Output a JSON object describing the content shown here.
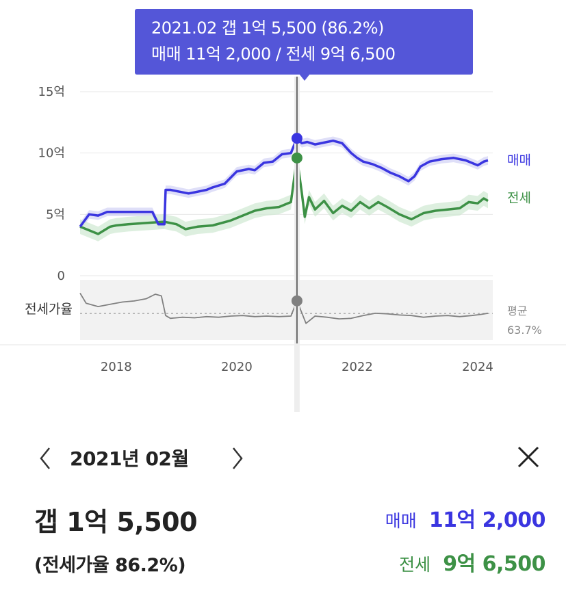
{
  "tooltip": {
    "line1": "2021.02  갭 1억 5,500 (86.2%)",
    "line2": "매매 11억 2,000 / 전세 9억 6,500"
  },
  "colors": {
    "sale": "#3a35e0",
    "jeonse": "#3d9146",
    "ratio": "#808080",
    "accent": "#5456d8",
    "sale_band": "#c9caf3",
    "jeonse_band": "#cfe8d2"
  },
  "chart_data": {
    "type": "line",
    "y_axis": {
      "ticks": [
        0,
        5,
        10,
        15
      ],
      "tick_labels": [
        "0",
        "5억",
        "10억",
        "15억"
      ],
      "ylim": [
        0,
        15
      ]
    },
    "x_axis": {
      "ticks": [
        2018,
        2020,
        2022,
        2024
      ],
      "tick_labels": [
        "2018",
        "2020",
        "2022",
        "2024"
      ],
      "xlim": [
        2017.4,
        2024.25
      ]
    },
    "series": [
      {
        "name": "매매",
        "color": "#3a35e0",
        "x": [
          2017.4,
          2017.55,
          2017.7,
          2017.85,
          2018.0,
          2018.2,
          2018.4,
          2018.6,
          2018.7,
          2018.8,
          2018.82,
          2018.9,
          2019.0,
          2019.2,
          2019.3,
          2019.4,
          2019.5,
          2019.6,
          2019.8,
          2020.0,
          2020.2,
          2020.3,
          2020.45,
          2020.6,
          2020.75,
          2020.9,
          2021.0,
          2021.08,
          2021.17,
          2021.3,
          2021.5,
          2021.6,
          2021.75,
          2021.9,
          2022.0,
          2022.1,
          2022.25,
          2022.4,
          2022.55,
          2022.7,
          2022.85,
          2022.95,
          2023.05,
          2023.2,
          2023.4,
          2023.6,
          2023.8,
          2024.0,
          2024.1,
          2024.17
        ],
        "values": [
          4.0,
          5.0,
          4.9,
          5.2,
          5.2,
          5.2,
          5.2,
          5.2,
          4.2,
          4.2,
          7.0,
          7.0,
          6.9,
          6.7,
          6.8,
          6.9,
          7.0,
          7.2,
          7.5,
          8.5,
          8.7,
          8.6,
          9.2,
          9.3,
          9.9,
          10.0,
          11.2,
          10.8,
          10.9,
          10.7,
          10.9,
          11.0,
          10.8,
          10.0,
          9.6,
          9.3,
          9.1,
          8.8,
          8.4,
          8.1,
          7.7,
          8.1,
          8.9,
          9.3,
          9.5,
          9.6,
          9.4,
          9.0,
          9.3,
          9.4
        ]
      },
      {
        "name": "전세",
        "color": "#3d9146",
        "x": [
          2017.4,
          2017.55,
          2017.7,
          2017.9,
          2018.0,
          2018.2,
          2018.5,
          2018.8,
          2019.0,
          2019.15,
          2019.35,
          2019.6,
          2019.9,
          2020.1,
          2020.3,
          2020.5,
          2020.7,
          2020.9,
          2021.0,
          2021.08,
          2021.13,
          2021.2,
          2021.3,
          2021.45,
          2021.6,
          2021.75,
          2021.9,
          2022.05,
          2022.2,
          2022.35,
          2022.5,
          2022.7,
          2022.9,
          2023.1,
          2023.3,
          2023.5,
          2023.7,
          2023.85,
          2024.0,
          2024.1,
          2024.17
        ],
        "values": [
          4.0,
          3.7,
          3.4,
          4.0,
          4.1,
          4.2,
          4.3,
          4.4,
          4.2,
          3.8,
          4.0,
          4.1,
          4.5,
          4.9,
          5.3,
          5.5,
          5.6,
          6.0,
          9.6,
          6.8,
          4.8,
          6.4,
          5.4,
          6.1,
          5.1,
          5.7,
          5.3,
          6.0,
          5.5,
          6.0,
          5.6,
          5.0,
          4.6,
          5.1,
          5.3,
          5.4,
          5.5,
          6.0,
          5.9,
          6.3,
          6.1
        ]
      },
      {
        "name": "전세가율",
        "color": "#808080",
        "x": [
          2017.4,
          2017.5,
          2017.7,
          2017.9,
          2018.1,
          2018.3,
          2018.5,
          2018.65,
          2018.75,
          2018.82,
          2018.9,
          2019.1,
          2019.3,
          2019.5,
          2019.7,
          2019.9,
          2020.1,
          2020.3,
          2020.5,
          2020.7,
          2020.9,
          2021.0,
          2021.08,
          2021.15,
          2021.3,
          2021.5,
          2021.7,
          2021.9,
          2022.1,
          2022.3,
          2022.5,
          2022.7,
          2022.9,
          2023.1,
          2023.3,
          2023.5,
          2023.7,
          2023.9,
          2024.05,
          2024.17
        ],
        "values": [
          100,
          82,
          76,
          80,
          84,
          86,
          90,
          98,
          95,
          60,
          55,
          57,
          56,
          58,
          57,
          59,
          60,
          58,
          59,
          58,
          59,
          86.2,
          65,
          46,
          59,
          57,
          54,
          55,
          60,
          64,
          63,
          61,
          60,
          57,
          59,
          60,
          58,
          60,
          62,
          64
        ]
      }
    ],
    "ratio_average": {
      "label_top": "평균",
      "label_bottom": "63.7%",
      "value": 63.7
    },
    "ratio_panel_label": "전세가율",
    "ratio_range": [
      20,
      120
    ],
    "highlight": {
      "x": 2021.0,
      "sale": 11.2,
      "jeonse": 9.6,
      "ratio": 86.2
    }
  },
  "detail": {
    "period": "2021년 02월",
    "gap": "갭 1억 5,500",
    "ratio": "(전세가율 86.2%)",
    "sale_label": "매매",
    "sale_value": "11억 2,000",
    "jeonse_label": "전세",
    "jeonse_value": "9억 6,500"
  }
}
